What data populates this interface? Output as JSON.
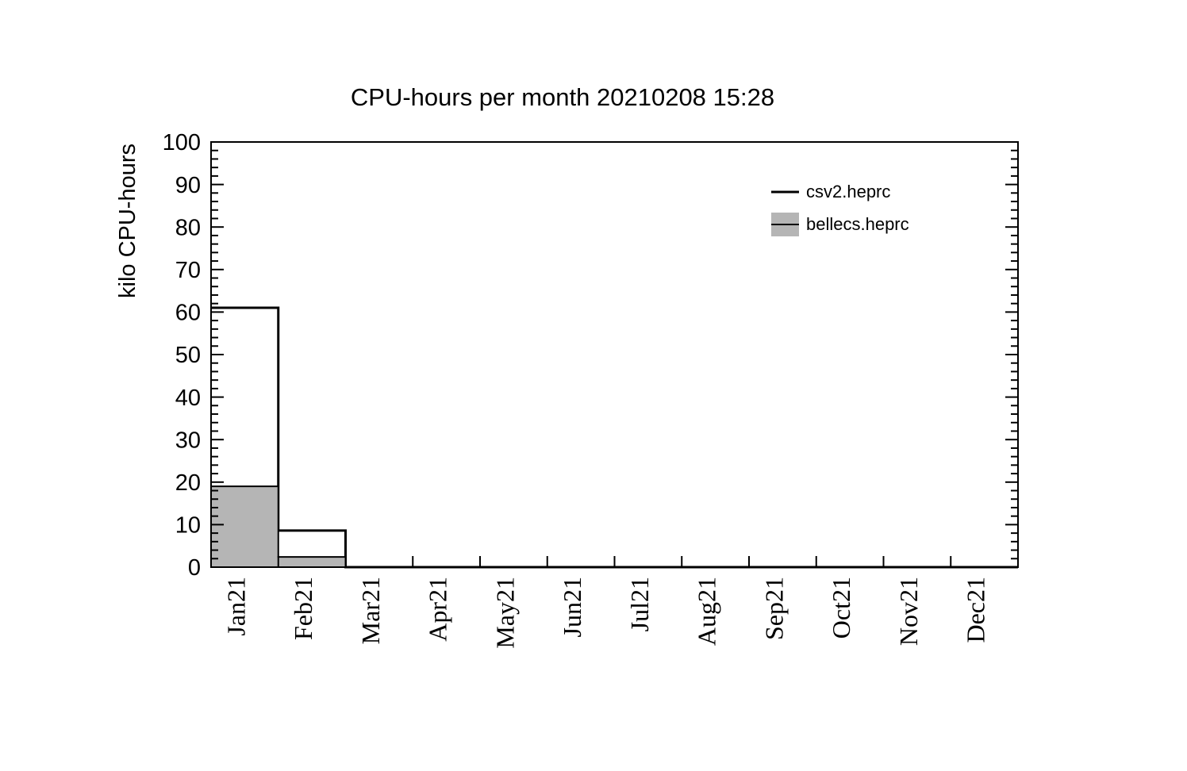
{
  "page": {
    "background": "#ffffff"
  },
  "title": {
    "text": "CPU-hours per month 20210208 15:28"
  },
  "legend": {
    "position": "top-right",
    "items": [
      {
        "label": "csv2.heprc",
        "marker": "line"
      },
      {
        "label": "bellecs.heprc",
        "marker": "filled-box"
      }
    ]
  },
  "chart_data": {
    "type": "bar",
    "subtype": "step-histogram",
    "title": "CPU-hours per month 20210208 15:28",
    "xlabel": "",
    "ylabel": "kilo CPU-hours",
    "categories": [
      "Jan21",
      "Feb21",
      "Mar21",
      "Apr21",
      "May21",
      "Jun21",
      "Jul21",
      "Aug21",
      "Sep21",
      "Oct21",
      "Nov21",
      "Dec21"
    ],
    "series": [
      {
        "name": "csv2.heprc",
        "style": "outline",
        "line_color": "#000000",
        "line_width": 3,
        "values": [
          61,
          8.6,
          0,
          0,
          0,
          0,
          0,
          0,
          0,
          0,
          0,
          0
        ]
      },
      {
        "name": "bellecs.heprc",
        "style": "filled",
        "fill_color": "#b5b5b5",
        "line_color": "#000000",
        "line_width": 2,
        "values": [
          19,
          2.4,
          0,
          0,
          0,
          0,
          0,
          0,
          0,
          0,
          0,
          0
        ]
      }
    ],
    "ylim": [
      0,
      100
    ],
    "ytick_step": 10,
    "yminor_step": 2,
    "grid": false,
    "axis_color": "#000000",
    "legend_position": "top-right"
  }
}
